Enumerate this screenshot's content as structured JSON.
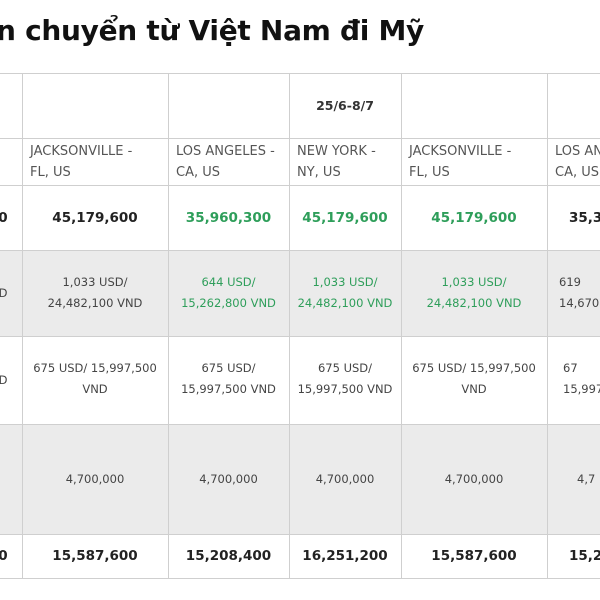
{
  "title": "n chuyển từ Việt Nam đi Mỹ",
  "date_range": "25/6-8/7",
  "columns": [
    {
      "line1": "JACKSONVILLE -",
      "line2": "FL, US"
    },
    {
      "line1": "LOS ANGELES -",
      "line2": "CA, US"
    },
    {
      "line1": "NEW YORK -",
      "line2": "NY, US"
    },
    {
      "line1": "JACKSONVILLE -",
      "line2": "FL, US"
    },
    {
      "line1": "LOS AN",
      "line2": "CA, US"
    }
  ],
  "row_total": {
    "left_fragment": "0",
    "values": [
      "45,179,600",
      "35,960,300",
      "45,179,600",
      "45,179,600",
      "35,3"
    ]
  },
  "row_usd_1": {
    "left_fragment": "D",
    "values": [
      {
        "line1": "1,033 USD/",
        "line2": "24,482,100 VND"
      },
      {
        "line1": "644 USD/",
        "line2": "15,262,800 VND"
      },
      {
        "line1": "1,033 USD/",
        "line2": "24,482,100 VND"
      },
      {
        "line1": "1,033 USD/",
        "line2": "24,482,100 VND"
      },
      {
        "line1": "619",
        "line2": "14,670"
      }
    ]
  },
  "row_usd_2": {
    "left_fragment": "D",
    "values": [
      {
        "line1": "675 USD/ 15,997,500",
        "line2": "VND"
      },
      {
        "line1": "675 USD/",
        "line2": "15,997,500 VND"
      },
      {
        "line1": "675 USD/",
        "line2": "15,997,500 VND"
      },
      {
        "line1": "675 USD/ 15,997,500",
        "line2": "VND"
      },
      {
        "line1": "67",
        "line2": "15,997"
      }
    ]
  },
  "row_fee": {
    "values": [
      "4,700,000",
      "4,700,000",
      "4,700,000",
      "4,700,000",
      "4,7"
    ]
  },
  "row_sum": {
    "left_fragment": "0",
    "values": [
      "15,587,600",
      "15,208,400",
      "16,251,200",
      "15,587,600",
      "15,2"
    ]
  },
  "colors": {
    "highlight_green": "#2e9e5a",
    "row_gray": "#ebebeb",
    "border": "#cfcfcf"
  }
}
